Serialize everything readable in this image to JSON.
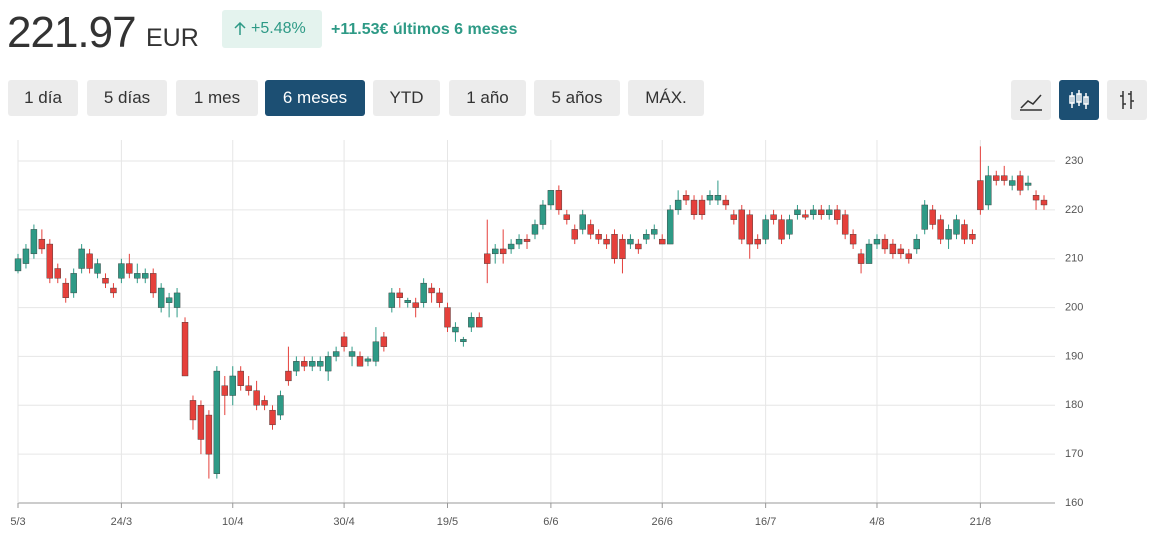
{
  "header": {
    "price": "221.97",
    "currency": "EUR",
    "change_pct": "+5.48%",
    "change_abs": "+11.53€ últimos 6 meses"
  },
  "ranges": [
    "1 día",
    "5 días",
    "1 mes",
    "6 meses",
    "YTD",
    "1 año",
    "5 años",
    "MÁX."
  ],
  "active_range": 3,
  "chart_data": {
    "type": "candlestick",
    "up_color": "#2e9a86",
    "down_color": "#e5403b",
    "grid": true,
    "ylim": [
      160,
      230
    ],
    "yticks": [
      160,
      170,
      180,
      190,
      200,
      210,
      220,
      230
    ],
    "categories": [
      "5/3",
      null,
      null,
      null,
      null,
      null,
      null,
      null,
      null,
      null,
      null,
      null,
      null,
      "24/3",
      null,
      null,
      null,
      null,
      null,
      null,
      null,
      null,
      null,
      null,
      null,
      null,
      null,
      "10/4",
      null,
      null,
      null,
      null,
      null,
      null,
      null,
      null,
      null,
      null,
      null,
      null,
      null,
      "30/4",
      null,
      null,
      null,
      null,
      null,
      null,
      null,
      null,
      null,
      null,
      null,
      null,
      "19/5",
      null,
      null,
      null,
      null,
      null,
      null,
      null,
      null,
      null,
      null,
      null,
      null,
      "6/6",
      null,
      null,
      null,
      null,
      null,
      null,
      null,
      null,
      null,
      null,
      null,
      null,
      null,
      "26/6",
      null,
      null,
      null,
      null,
      null,
      null,
      null,
      null,
      null,
      null,
      null,
      null,
      "16/7",
      null,
      null,
      null,
      null,
      null,
      null,
      null,
      null,
      null,
      null,
      null,
      null,
      null,
      "4/8",
      null,
      null,
      null,
      null,
      null,
      null,
      null,
      null,
      null,
      null,
      null,
      null,
      "21/8",
      null,
      null,
      null,
      null,
      null,
      null,
      null,
      null
    ],
    "open": [
      207.5,
      209,
      211,
      214,
      213,
      208,
      205,
      203,
      208,
      211,
      207,
      206,
      204,
      206,
      209,
      206,
      206,
      207,
      200,
      201,
      200,
      197,
      181,
      180,
      178,
      166,
      184,
      182,
      187,
      184,
      183,
      181,
      179,
      178,
      187,
      187,
      189,
      188,
      188,
      187,
      190,
      194,
      190,
      190,
      189,
      189,
      194,
      200,
      203,
      201,
      201,
      201,
      204,
      203,
      200,
      195,
      193,
      196,
      198,
      211,
      211,
      212,
      212,
      213,
      214,
      215,
      217,
      221,
      224,
      219,
      216,
      216,
      217,
      215,
      214,
      215,
      214,
      213,
      213,
      214,
      215,
      214,
      213,
      220,
      223,
      222,
      222,
      222,
      222,
      222,
      219,
      220,
      219,
      214,
      214,
      219,
      218,
      215,
      219,
      219,
      219,
      220,
      219,
      220,
      219,
      215,
      211,
      209,
      213,
      214,
      213,
      212,
      211,
      212,
      216,
      220,
      218,
      214,
      215,
      217,
      215,
      226,
      221,
      227,
      227,
      225,
      227,
      225,
      223,
      222
    ],
    "high": [
      211,
      213,
      217,
      216,
      214,
      209,
      206,
      208,
      213,
      212,
      210,
      207,
      205,
      210,
      211,
      209,
      208,
      208,
      205,
      203,
      204,
      198,
      182,
      181,
      179,
      188,
      186,
      188,
      188,
      186,
      185,
      182,
      180,
      183,
      192,
      190,
      190,
      190,
      190,
      191,
      192,
      195,
      192,
      191,
      190,
      196,
      195,
      204,
      204,
      202,
      202,
      206,
      205,
      204,
      201,
      197,
      194,
      199,
      199,
      218,
      213,
      216,
      214,
      215,
      215,
      218,
      222,
      224,
      225,
      220,
      217,
      220,
      218,
      216,
      215,
      216,
      215,
      215,
      214,
      216,
      217,
      215,
      221,
      224,
      224,
      223,
      223,
      224,
      226,
      223,
      220,
      221,
      220,
      215,
      219,
      220,
      219,
      219,
      221,
      220,
      221,
      221,
      221,
      221,
      220,
      216,
      212,
      214,
      215,
      215,
      214,
      213,
      212,
      215,
      222,
      221,
      219,
      217,
      219,
      218,
      216,
      233,
      229,
      228,
      229,
      227,
      228,
      227,
      224,
      223
    ],
    "low": [
      207,
      208,
      210,
      211,
      205,
      205,
      201,
      202,
      207,
      207,
      206,
      204,
      202,
      205,
      206,
      205,
      205,
      202,
      199,
      198,
      198,
      186,
      175,
      170,
      165,
      165,
      178,
      180,
      183,
      182,
      179,
      179,
      175,
      177,
      184,
      186,
      187,
      187,
      187,
      185,
      189,
      191,
      188,
      188,
      188,
      188,
      191,
      199,
      200,
      200,
      198,
      200,
      201,
      200,
      195,
      193,
      192,
      195,
      196,
      205,
      209,
      209,
      211,
      212,
      212,
      214,
      216,
      220,
      219,
      217,
      213,
      215,
      214,
      213,
      212,
      209,
      207,
      212,
      211,
      213,
      214,
      213,
      213,
      219,
      221,
      218,
      218,
      221,
      221,
      220,
      217,
      213,
      210,
      212,
      213,
      217,
      213,
      214,
      218,
      218,
      218,
      218,
      218,
      217,
      214,
      212,
      207,
      209,
      212,
      211,
      210,
      210,
      209,
      211,
      215,
      216,
      213,
      212,
      214,
      213,
      213,
      219,
      220,
      225,
      225,
      224,
      223,
      224,
      220,
      220
    ],
    "close": [
      210,
      212,
      216,
      212,
      206,
      206,
      202,
      207,
      212,
      208,
      209,
      205,
      203,
      209,
      207,
      207,
      207,
      203,
      204,
      202,
      203,
      186,
      177,
      173,
      170,
      187,
      182,
      186,
      184,
      183,
      180,
      180,
      176,
      182,
      185,
      189,
      188,
      189,
      189,
      190,
      191,
      192,
      191,
      188,
      189.5,
      193,
      192,
      203,
      202,
      201.5,
      200,
      205,
      203,
      201,
      196,
      196,
      193.5,
      198,
      196,
      209,
      212,
      211,
      213,
      214,
      213.5,
      217,
      221,
      224,
      220,
      218,
      214,
      219,
      215,
      214,
      213,
      210,
      210,
      214,
      212,
      215,
      216,
      213,
      220,
      222,
      222,
      219,
      219,
      223,
      223,
      221,
      218,
      214,
      213,
      213,
      218,
      218,
      214,
      218,
      220,
      218.5,
      220,
      219,
      220,
      218,
      215,
      213,
      209,
      213,
      214,
      212,
      211,
      211,
      210,
      214,
      221,
      217,
      214,
      216,
      218,
      214,
      214,
      220,
      227,
      226,
      226,
      226,
      224,
      225.5,
      222,
      221
    ]
  }
}
